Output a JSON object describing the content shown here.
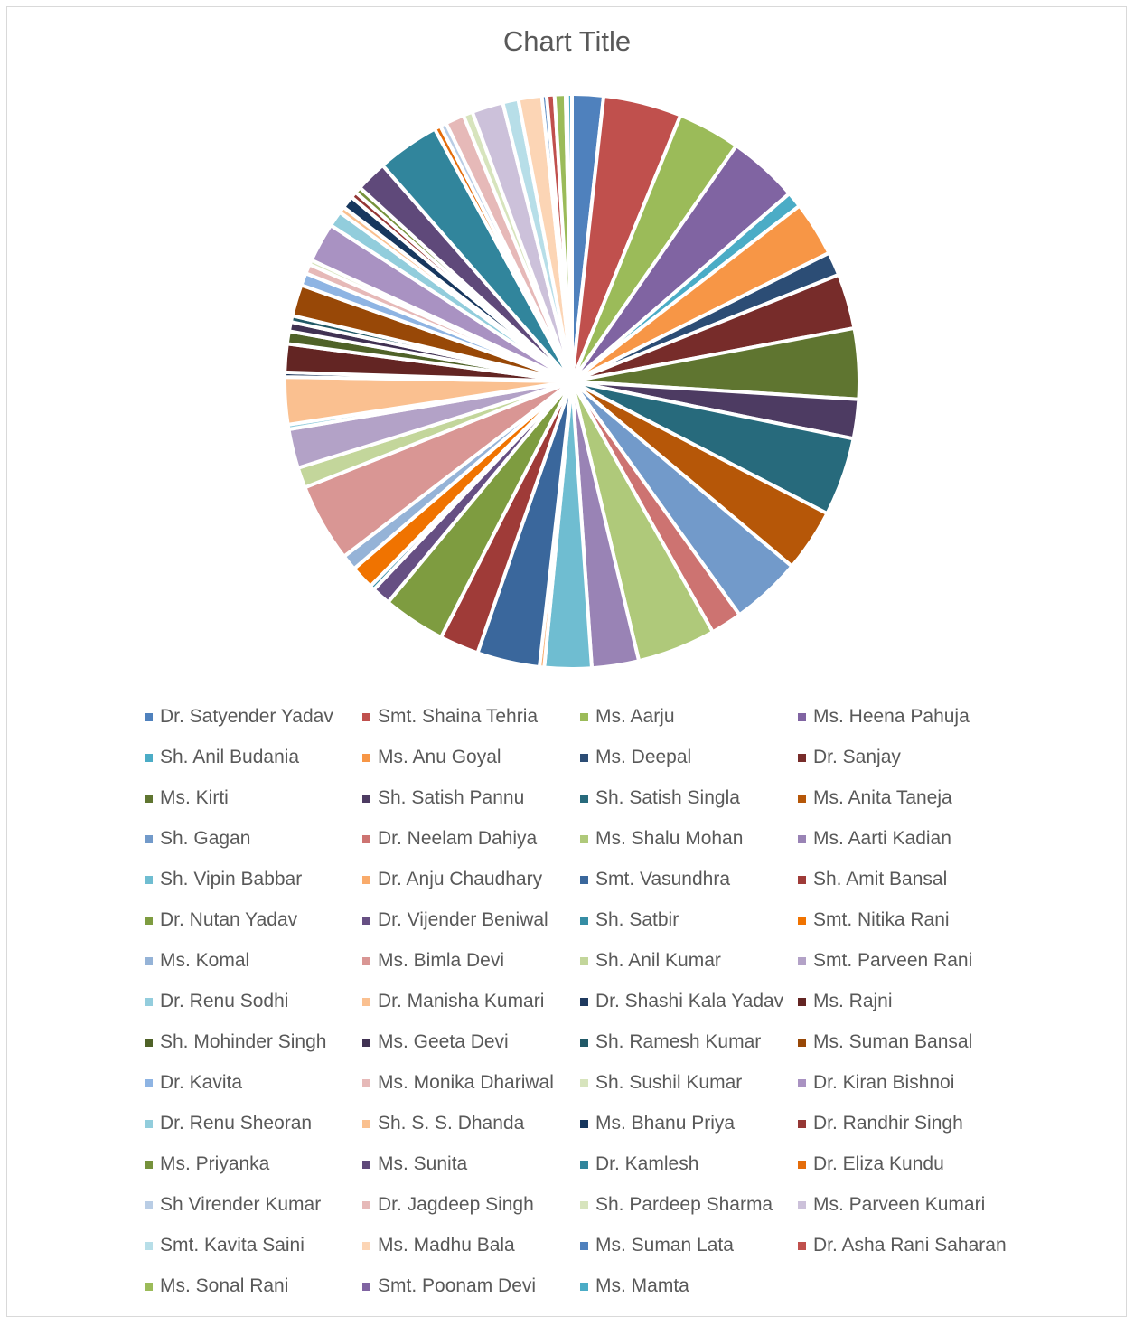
{
  "chart_data": {
    "type": "pie",
    "title": "Chart Title",
    "legend_position": "bottom",
    "series": [
      {
        "name": "Dr. Satyender Yadav",
        "value": 2.0,
        "color": "#4F81BD"
      },
      {
        "name": "Smt. Shaina Tehria",
        "value": 5.0,
        "color": "#C0504D"
      },
      {
        "name": "Ms. Aarju",
        "value": 4.0,
        "color": "#9BBB59"
      },
      {
        "name": "Ms. Heena Pahuja",
        "value": 4.5,
        "color": "#8064A2"
      },
      {
        "name": "Sh. Anil Budania",
        "value": 1.0,
        "color": "#4BACC6"
      },
      {
        "name": "Ms. Anu Goyal",
        "value": 3.5,
        "color": "#F79646"
      },
      {
        "name": "Ms. Deepal",
        "value": 1.5,
        "color": "#2C4D75"
      },
      {
        "name": "Dr. Sanjay",
        "value": 3.5,
        "color": "#772C2A"
      },
      {
        "name": "Ms. Kirti",
        "value": 4.5,
        "color": "#5F7530"
      },
      {
        "name": "Sh. Satish Pannu",
        "value": 2.5,
        "color": "#4D3B62"
      },
      {
        "name": "Sh. Satish Singla",
        "value": 5.0,
        "color": "#276A7C"
      },
      {
        "name": "Ms. Anita Taneja",
        "value": 4.0,
        "color": "#B65708"
      },
      {
        "name": "Sh. Gagan",
        "value": 4.5,
        "color": "#729ACA"
      },
      {
        "name": "Dr. Neelam Dahiya",
        "value": 2.0,
        "color": "#CD7371"
      },
      {
        "name": "Ms. Shalu Mohan",
        "value": 5.0,
        "color": "#AFC97A"
      },
      {
        "name": "Ms. Aarti Kadian",
        "value": 3.0,
        "color": "#9983B5"
      },
      {
        "name": "Sh. Vipin Babbar",
        "value": 3.0,
        "color": "#6FBDD1"
      },
      {
        "name": "Dr. Anju Chaudhary",
        "value": 0.3,
        "color": "#F9AB6B"
      },
      {
        "name": "Smt. Vasundhra",
        "value": 4.0,
        "color": "#3A679C"
      },
      {
        "name": "Sh. Amit Bansal",
        "value": 2.5,
        "color": "#9F3B38"
      },
      {
        "name": "Dr. Nutan Yadav",
        "value": 4.0,
        "color": "#7E9C40"
      },
      {
        "name": "Dr. Vijender Beniwal",
        "value": 1.2,
        "color": "#664F83"
      },
      {
        "name": "Sh. Satbir",
        "value": 0.3,
        "color": "#358DA4"
      },
      {
        "name": "Smt. Nitika Rani",
        "value": 1.5,
        "color": "#F07300"
      },
      {
        "name": "Ms. Komal",
        "value": 1.0,
        "color": "#95B3D7"
      },
      {
        "name": "Ms. Bimla Devi",
        "value": 5.0,
        "color": "#D99694"
      },
      {
        "name": "Sh. Anil Kumar",
        "value": 1.3,
        "color": "#C3D69B"
      },
      {
        "name": "Smt. Parveen Rani",
        "value": 2.5,
        "color": "#B3A2C7"
      },
      {
        "name": "Dr. Renu Sodhi",
        "value": 0.3,
        "color": "#93CDDD"
      },
      {
        "name": "Dr. Manisha Kumari",
        "value": 3.0,
        "color": "#FAC090"
      },
      {
        "name": "Dr. Shashi Kala Yadav",
        "value": 0.3,
        "color": "#1F3A5F"
      },
      {
        "name": "Ms. Rajni",
        "value": 1.8,
        "color": "#632523"
      },
      {
        "name": "Sh. Mohinder Singh",
        "value": 0.8,
        "color": "#4F6228"
      },
      {
        "name": "Ms. Geeta Devi",
        "value": 0.6,
        "color": "#403152"
      },
      {
        "name": "Sh. Ramesh Kumar",
        "value": 0.4,
        "color": "#215967"
      },
      {
        "name": "Ms. Suman Bansal",
        "value": 2.0,
        "color": "#984807"
      },
      {
        "name": "Dr. Kavita",
        "value": 0.8,
        "color": "#8EB4E3"
      },
      {
        "name": "Ms. Monika Dhariwal",
        "value": 0.6,
        "color": "#E6B9B8"
      },
      {
        "name": "Sh. Sushil Kumar",
        "value": 0.3,
        "color": "#D7E4BD"
      },
      {
        "name": "Dr. Kiran Bishnoi",
        "value": 2.5,
        "color": "#A992C2"
      },
      {
        "name": "Dr. Renu Sheoran",
        "value": 1.0,
        "color": "#92CDDC"
      },
      {
        "name": "Sh. S. S. Dhanda",
        "value": 0.4,
        "color": "#FAC08F"
      },
      {
        "name": "Ms. Bhanu Priya",
        "value": 0.8,
        "color": "#17375E"
      },
      {
        "name": "Dr. Randhir Singh",
        "value": 0.4,
        "color": "#953735"
      },
      {
        "name": "Ms. Priyanka",
        "value": 0.4,
        "color": "#76923C"
      },
      {
        "name": "Ms. Sunita",
        "value": 2.0,
        "color": "#5F497A"
      },
      {
        "name": "Dr. Kamlesh",
        "value": 4.0,
        "color": "#31859C"
      },
      {
        "name": "Dr. Eliza Kundu",
        "value": 0.4,
        "color": "#E46C0A"
      },
      {
        "name": "Sh Virender Kumar",
        "value": 0.4,
        "color": "#B9CDE5"
      },
      {
        "name": "Dr. Jagdeep Singh",
        "value": 1.2,
        "color": "#E6B9B8"
      },
      {
        "name": "Sh. Pardeep Sharma",
        "value": 0.6,
        "color": "#D7E4BD"
      },
      {
        "name": "Ms. Parveen Kumari",
        "value": 2.0,
        "color": "#CCC1DA"
      },
      {
        "name": "Smt. Kavita Saini",
        "value": 1.0,
        "color": "#B7DEE8"
      },
      {
        "name": "Ms. Madhu Bala",
        "value": 1.5,
        "color": "#FCD5B5"
      },
      {
        "name": "Ms. Suman Lata",
        "value": 0.3,
        "color": "#4F81BD"
      },
      {
        "name": "Dr. Asha Rani Saharan",
        "value": 0.5,
        "color": "#C0504D"
      },
      {
        "name": "Ms. Sonal Rani",
        "value": 0.7,
        "color": "#9BBB59"
      },
      {
        "name": "Smt. Poonam Devi",
        "value": 0.1,
        "color": "#8064A2"
      },
      {
        "name": "Ms. Mamta",
        "value": 0.3,
        "color": "#4BACC6"
      }
    ]
  }
}
